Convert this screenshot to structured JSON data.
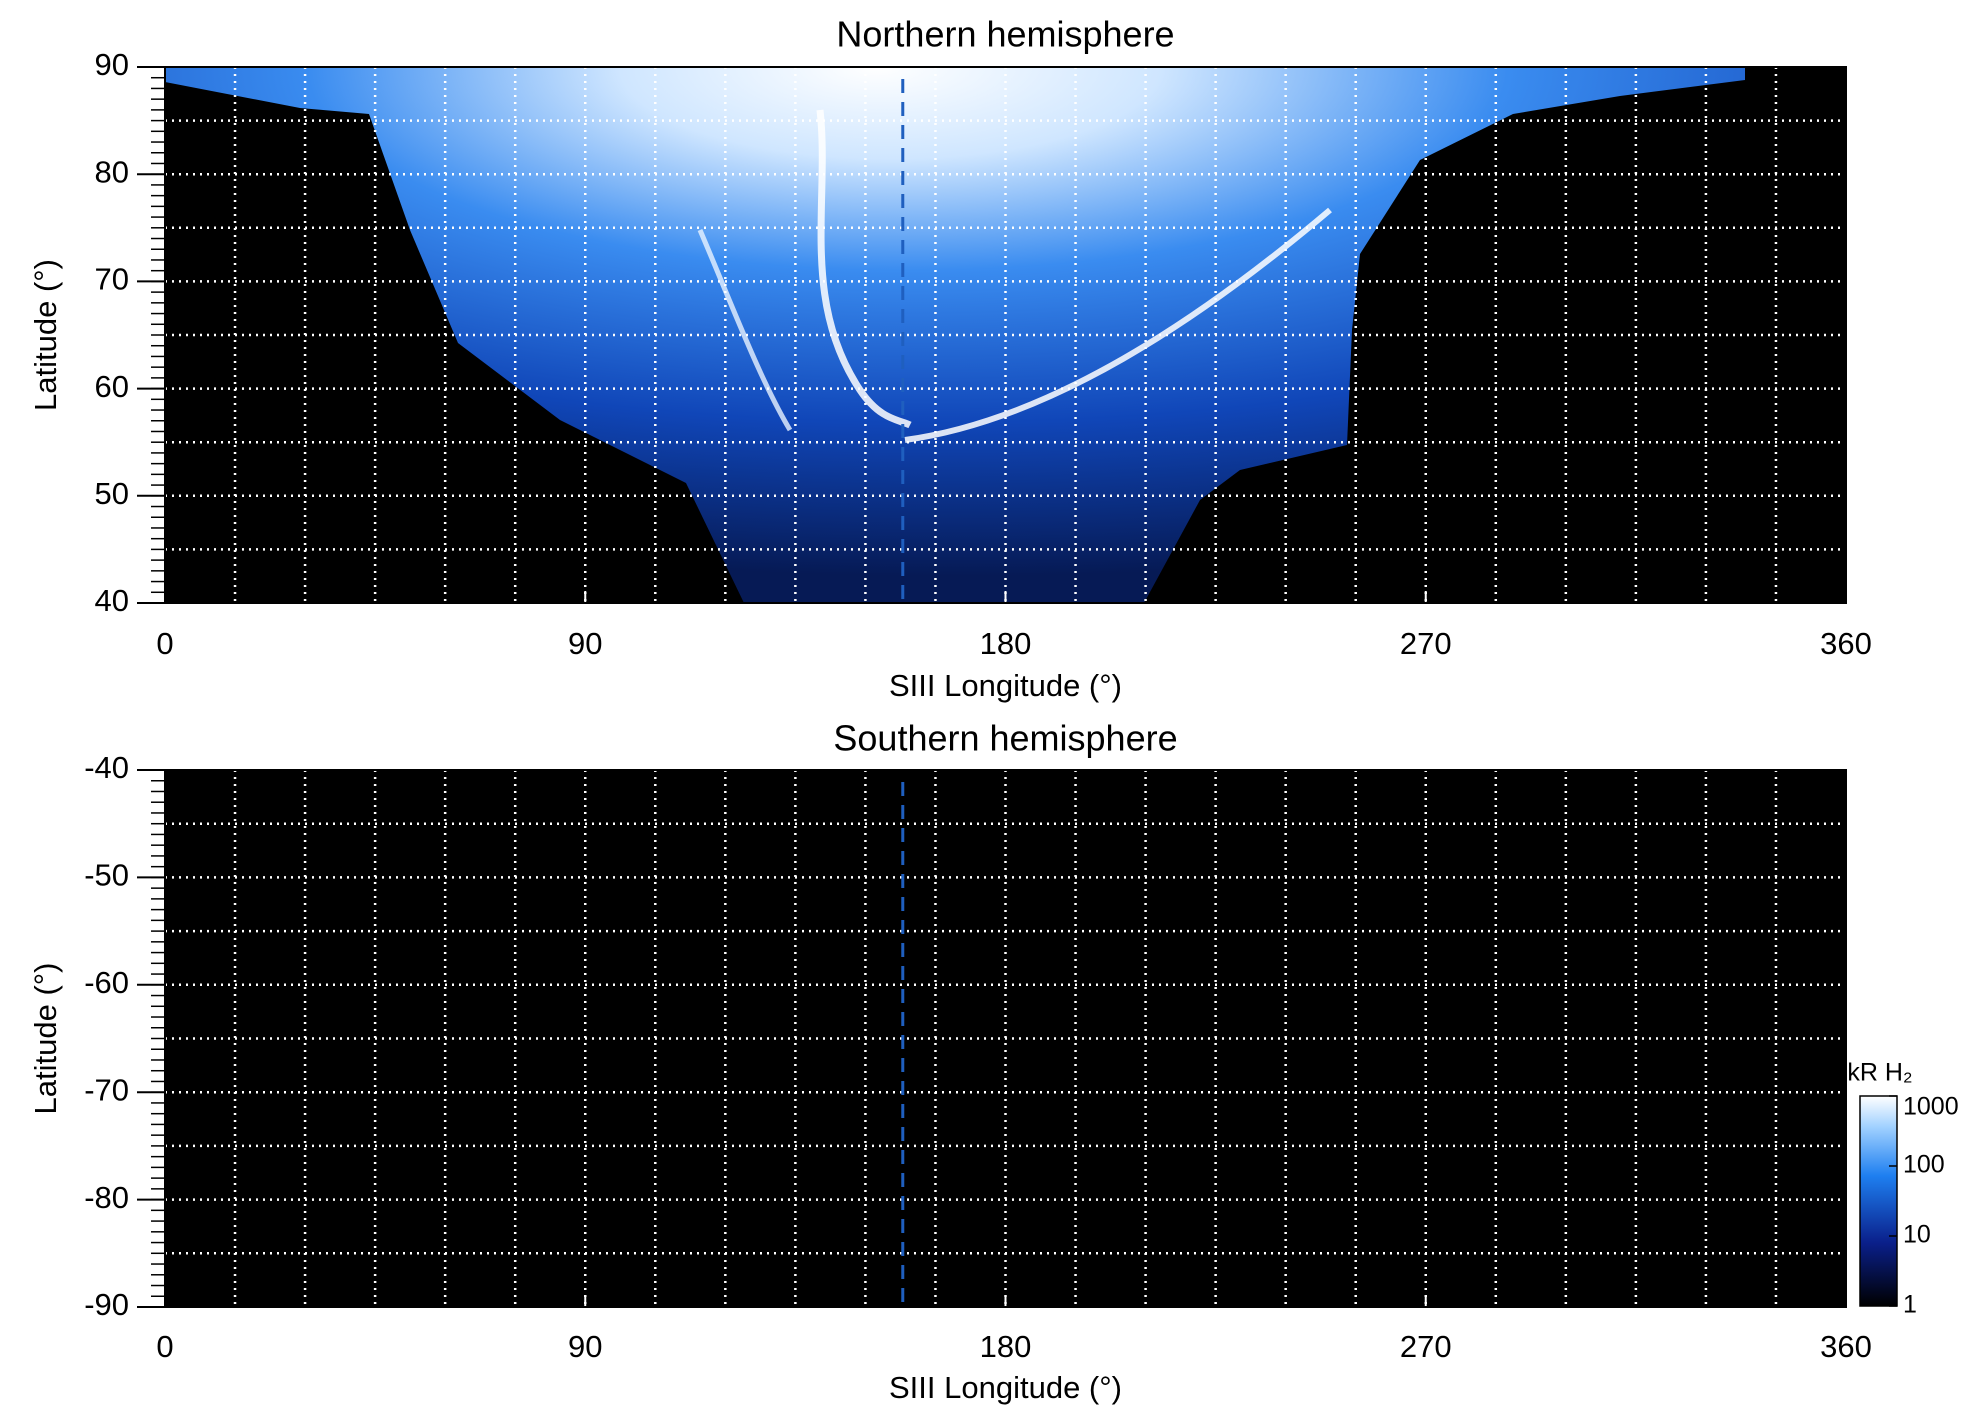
{
  "chart_data": [
    {
      "type": "heatmap",
      "title": "Northern hemisphere",
      "x_label": "SIII Longitude (°)",
      "y_label": "Latitude (°)",
      "xlim": [
        0,
        360
      ],
      "xticks": [
        0,
        90,
        180,
        270,
        360
      ],
      "ylim": [
        40,
        90
      ],
      "yticks": [
        40,
        50,
        60,
        70,
        80,
        90
      ],
      "xgrid": [
        15,
        30,
        45,
        60,
        75,
        90,
        105,
        120,
        135,
        150,
        165,
        180,
        195,
        210,
        225,
        240,
        255,
        270,
        285,
        300,
        315,
        330,
        345
      ],
      "ygrid": [
        45,
        50,
        55,
        60,
        65,
        70,
        75,
        80,
        85
      ],
      "reference_line_x": 158,
      "reference_color": "#1f5fbf"
    },
    {
      "type": "heatmap",
      "title": "Southern hemisphere",
      "x_label": "SIII Longitude (°)",
      "y_label": "Latitude (°)",
      "xlim": [
        0,
        360
      ],
      "xticks": [
        0,
        90,
        180,
        270,
        360
      ],
      "ylim": [
        -90,
        -40
      ],
      "yticks": [
        -90,
        -80,
        -70,
        -60,
        -50,
        -40
      ],
      "xgrid": [
        15,
        30,
        45,
        60,
        75,
        90,
        105,
        120,
        135,
        150,
        165,
        180,
        195,
        210,
        225,
        240,
        255,
        270,
        285,
        300,
        315,
        330,
        345
      ],
      "ygrid": [
        -85,
        -80,
        -75,
        -70,
        -65,
        -60,
        -55,
        -50,
        -45
      ],
      "reference_line_x": 158,
      "reference_color": "#1f5fbf",
      "colorbar": {
        "label": "kR H₂",
        "log": true,
        "lim": [
          1,
          1000
        ],
        "ticks": [
          1,
          10,
          100,
          1000
        ]
      }
    }
  ]
}
